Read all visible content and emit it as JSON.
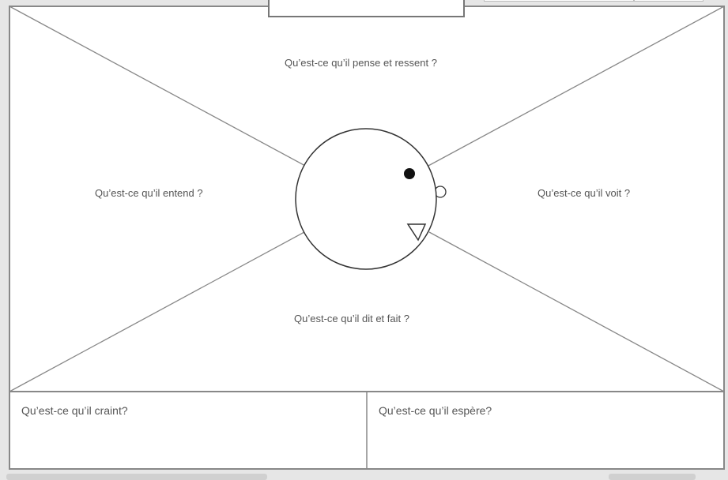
{
  "map": {
    "quadrants": {
      "top": "Qu’est-ce qu’il pense et ressent ?",
      "left": "Qu’est-ce qu’il entend ?",
      "right": "Qu’est-ce qu’il voit ?",
      "bottom": "Qu’est-ce qu’il dit et fait ?"
    },
    "boxes": {
      "fears": "Qu’est-ce qu’il craint?",
      "hopes": "Qu’est-ce qu’il espère?"
    },
    "title_box_value": ""
  }
}
